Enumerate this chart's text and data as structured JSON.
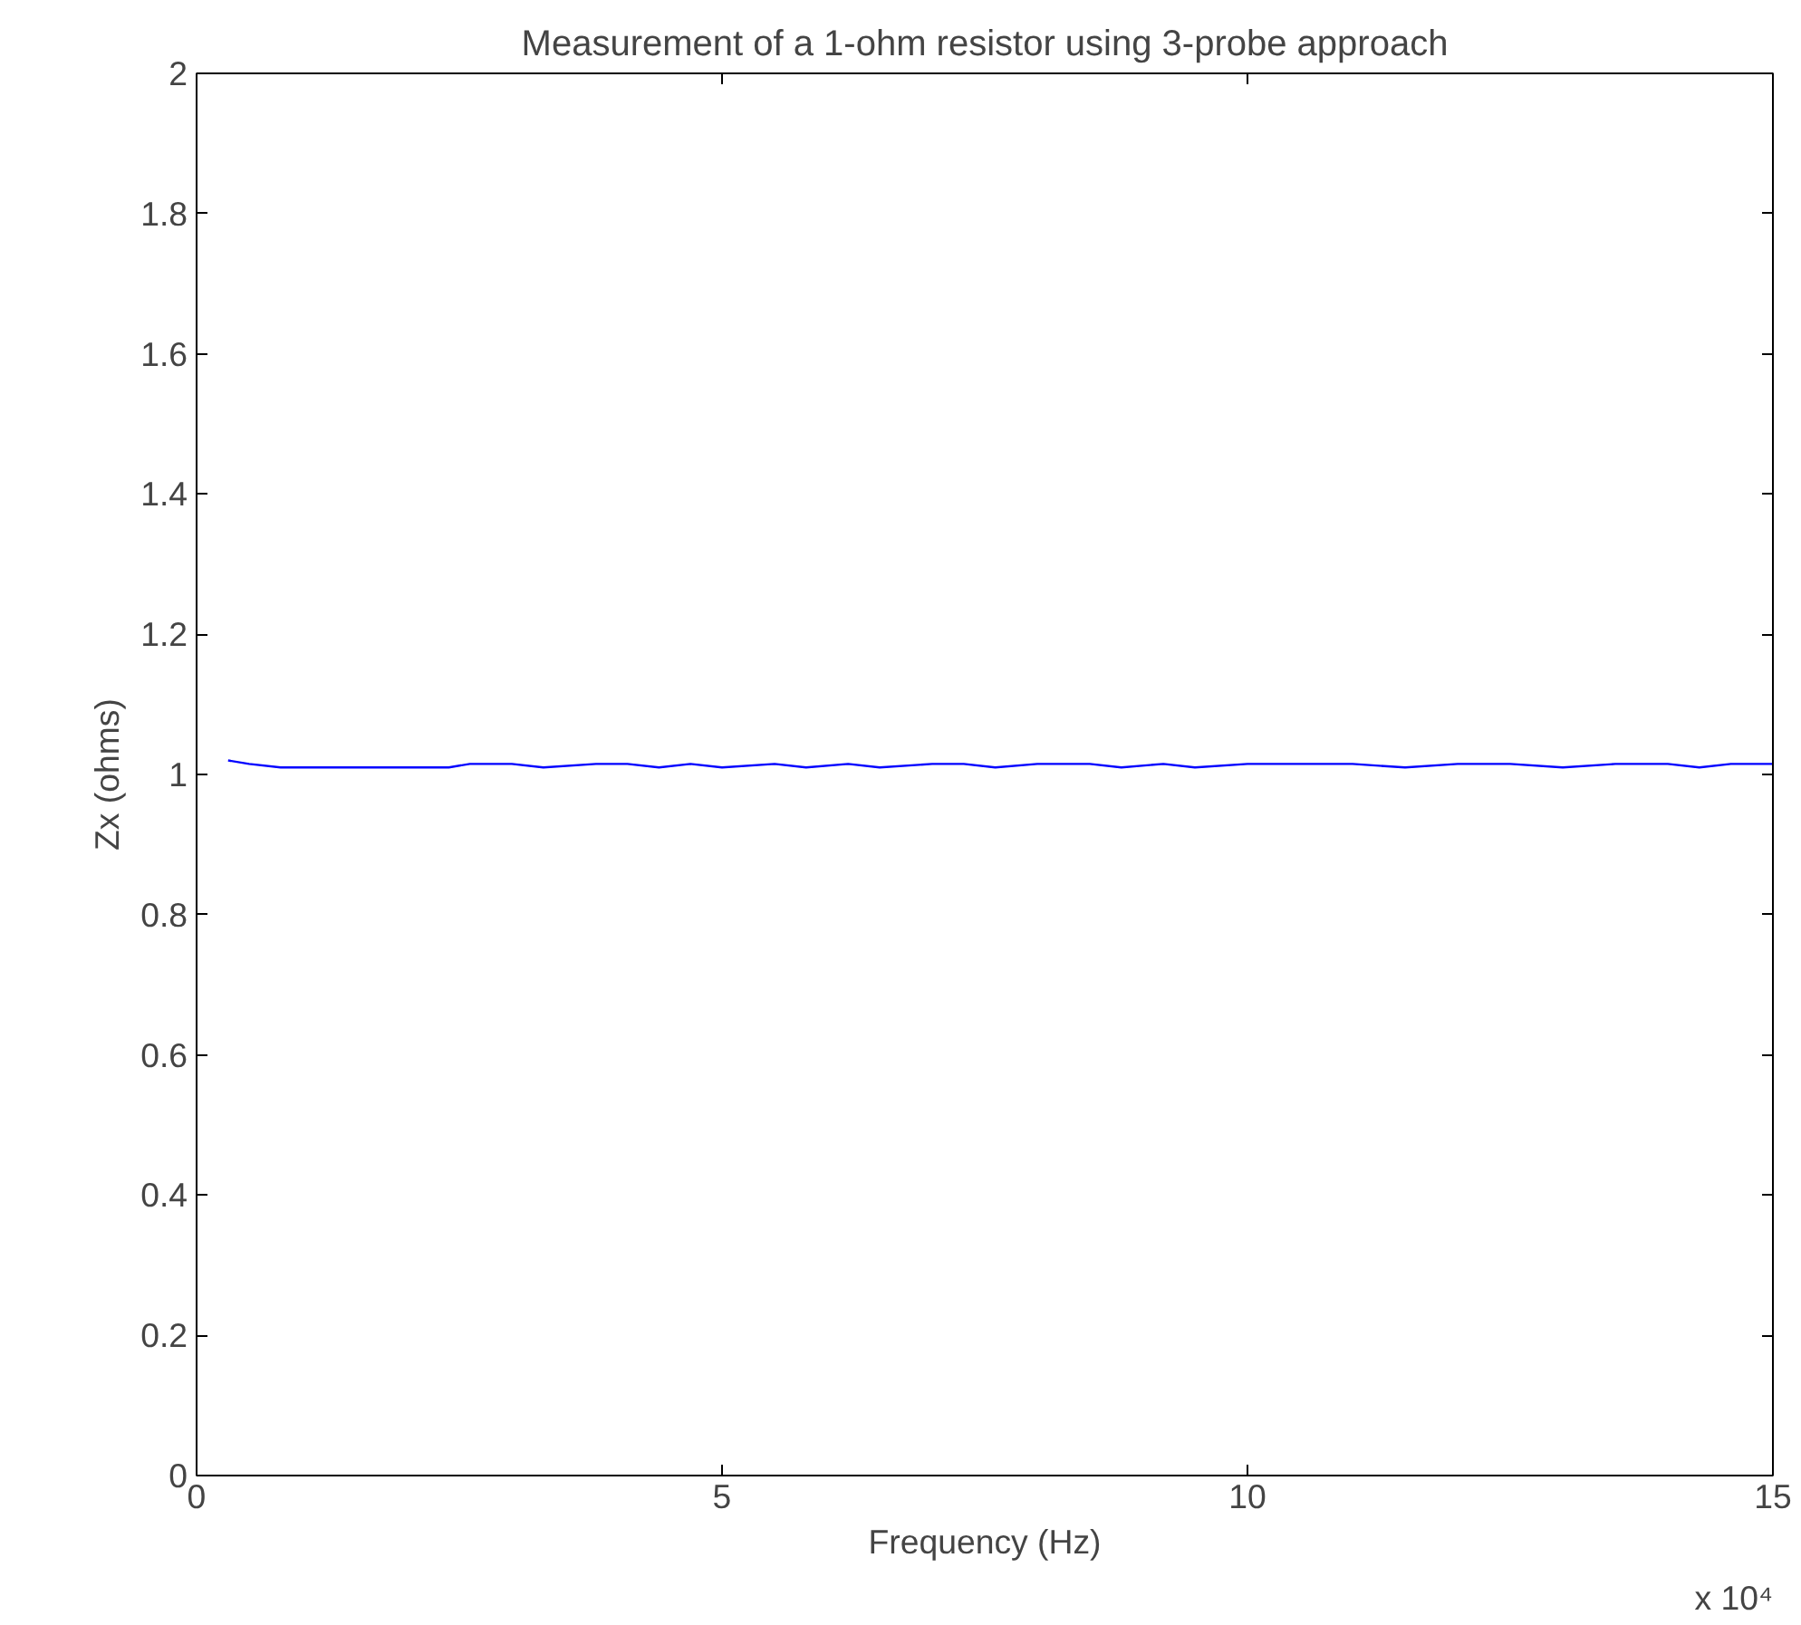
{
  "chart_data": {
    "type": "line",
    "title": "Measurement of a 1-ohm resistor using 3-probe approach",
    "xlabel": "Frequency (Hz)",
    "ylabel": "Zx (ohms)",
    "x": [
      0.3,
      0.5,
      0.8,
      1.5,
      2.4,
      2.6,
      3,
      3.3,
      3.8,
      4.1,
      4.4,
      4.7,
      5,
      5.5,
      5.8,
      6.2,
      6.5,
      7,
      7.3,
      7.6,
      8,
      8.5,
      8.8,
      9.2,
      9.5,
      10,
      10.5,
      11,
      11.5,
      12,
      12.5,
      13,
      13.5,
      14,
      14.3,
      14.6,
      15
    ],
    "series": [
      {
        "color": "#0000ff",
        "values": [
          1.02,
          1.015,
          1.01,
          1.01,
          1.01,
          1.015,
          1.015,
          1.01,
          1.015,
          1.015,
          1.01,
          1.015,
          1.01,
          1.015,
          1.01,
          1.015,
          1.01,
          1.015,
          1.015,
          1.01,
          1.015,
          1.015,
          1.01,
          1.015,
          1.01,
          1.015,
          1.015,
          1.015,
          1.01,
          1.015,
          1.015,
          1.01,
          1.015,
          1.015,
          1.01,
          1.015,
          1.015
        ]
      }
    ],
    "xlim": [
      0,
      15
    ],
    "ylim": [
      0,
      2
    ],
    "xticks": [
      0,
      5,
      10,
      15
    ],
    "yticks": [
      0,
      {
        "value": 0.2,
        "label": "0.2"
      },
      {
        "value": 0.4,
        "label": "0.4"
      },
      {
        "value": 0.6,
        "label": "0.6"
      },
      {
        "value": 0.8,
        "label": "0.8"
      },
      1,
      {
        "value": 1.2,
        "label": "1.2"
      },
      {
        "value": 1.4,
        "label": "1.4"
      },
      {
        "value": 1.6,
        "label": "1.6"
      },
      {
        "value": 1.8,
        "label": "1.8"
      },
      2
    ],
    "annotations": [
      "x 10⁴"
    ],
    "grid": false,
    "line_style": "solid",
    "marker": "none"
  }
}
